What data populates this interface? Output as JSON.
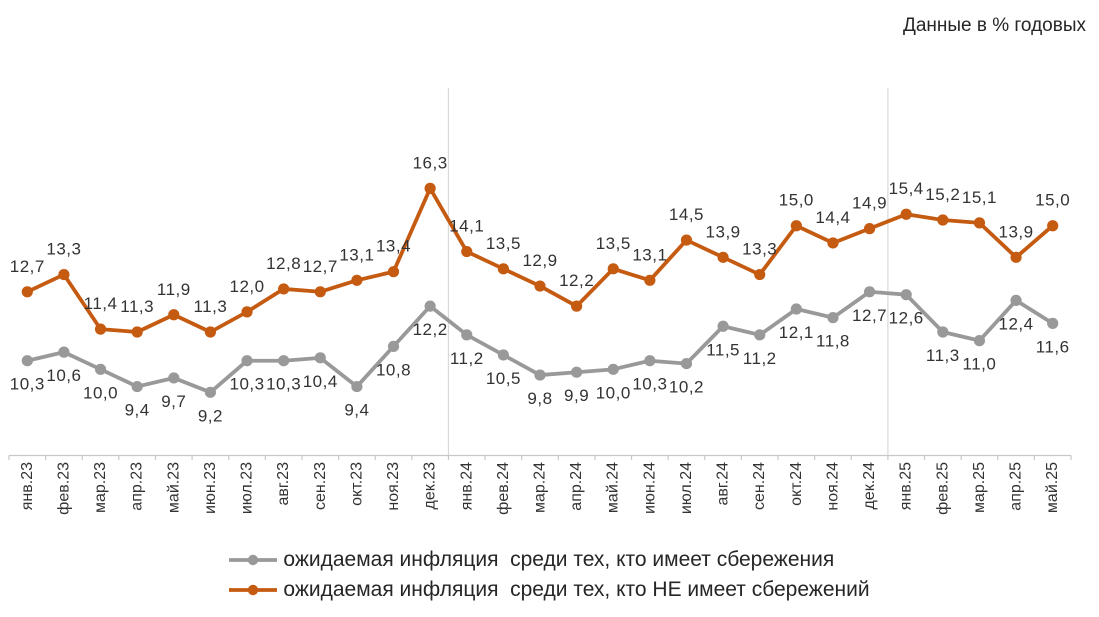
{
  "note": "Данные в % годовых",
  "chart_data": {
    "type": "line",
    "title": "Данные в % годовых",
    "categories": [
      "янв.23",
      "фев.23",
      "мар.23",
      "апр.23",
      "май.23",
      "июн.23",
      "июл.23",
      "авг.23",
      "сен.23",
      "окт.23",
      "ноя.23",
      "дек.23",
      "янв.24",
      "фев.24",
      "мар.24",
      "апр.24",
      "май.24",
      "июн.24",
      "июл.24",
      "авг.24",
      "сен.24",
      "окт.24",
      "ноя.24",
      "дек.24",
      "янв.25",
      "фев.25",
      "мар.25",
      "апр.25",
      "май.25"
    ],
    "series": [
      {
        "name": "ожидаемая инфляция  среди тех, кто имеет сбережения",
        "color": "#999999",
        "label_position": "below",
        "values": [
          10.3,
          10.6,
          10.0,
          9.4,
          9.7,
          9.2,
          10.3,
          10.3,
          10.4,
          9.4,
          10.8,
          12.2,
          11.2,
          10.5,
          9.8,
          9.9,
          10.0,
          10.3,
          10.2,
          11.5,
          11.2,
          12.1,
          11.8,
          12.7,
          12.6,
          11.3,
          11.0,
          12.4,
          11.6
        ]
      },
      {
        "name": "ожидаемая инфляция  среди тех, кто НЕ имеет сбережений",
        "color": "#C55A11",
        "label_position": "above",
        "values": [
          12.7,
          13.3,
          11.4,
          11.3,
          11.9,
          11.3,
          12.0,
          12.8,
          12.7,
          13.1,
          13.4,
          16.3,
          14.1,
          13.5,
          12.9,
          12.2,
          13.5,
          13.1,
          14.5,
          13.9,
          13.3,
          15.0,
          14.4,
          14.9,
          15.4,
          15.2,
          15.1,
          13.9,
          15.0
        ]
      }
    ],
    "value_labels": true,
    "decimal_separator": ",",
    "ylim": [
      7.0,
      19.9
    ],
    "grid": false,
    "separators_after_categories": [
      "дек.23",
      "дек.24"
    ],
    "legend_position": "bottom"
  },
  "colors": {
    "axis_line": "#C8C8C8",
    "separator_line": "#D9D9D9",
    "data_label": "#333333",
    "tick_label": "#333333"
  }
}
